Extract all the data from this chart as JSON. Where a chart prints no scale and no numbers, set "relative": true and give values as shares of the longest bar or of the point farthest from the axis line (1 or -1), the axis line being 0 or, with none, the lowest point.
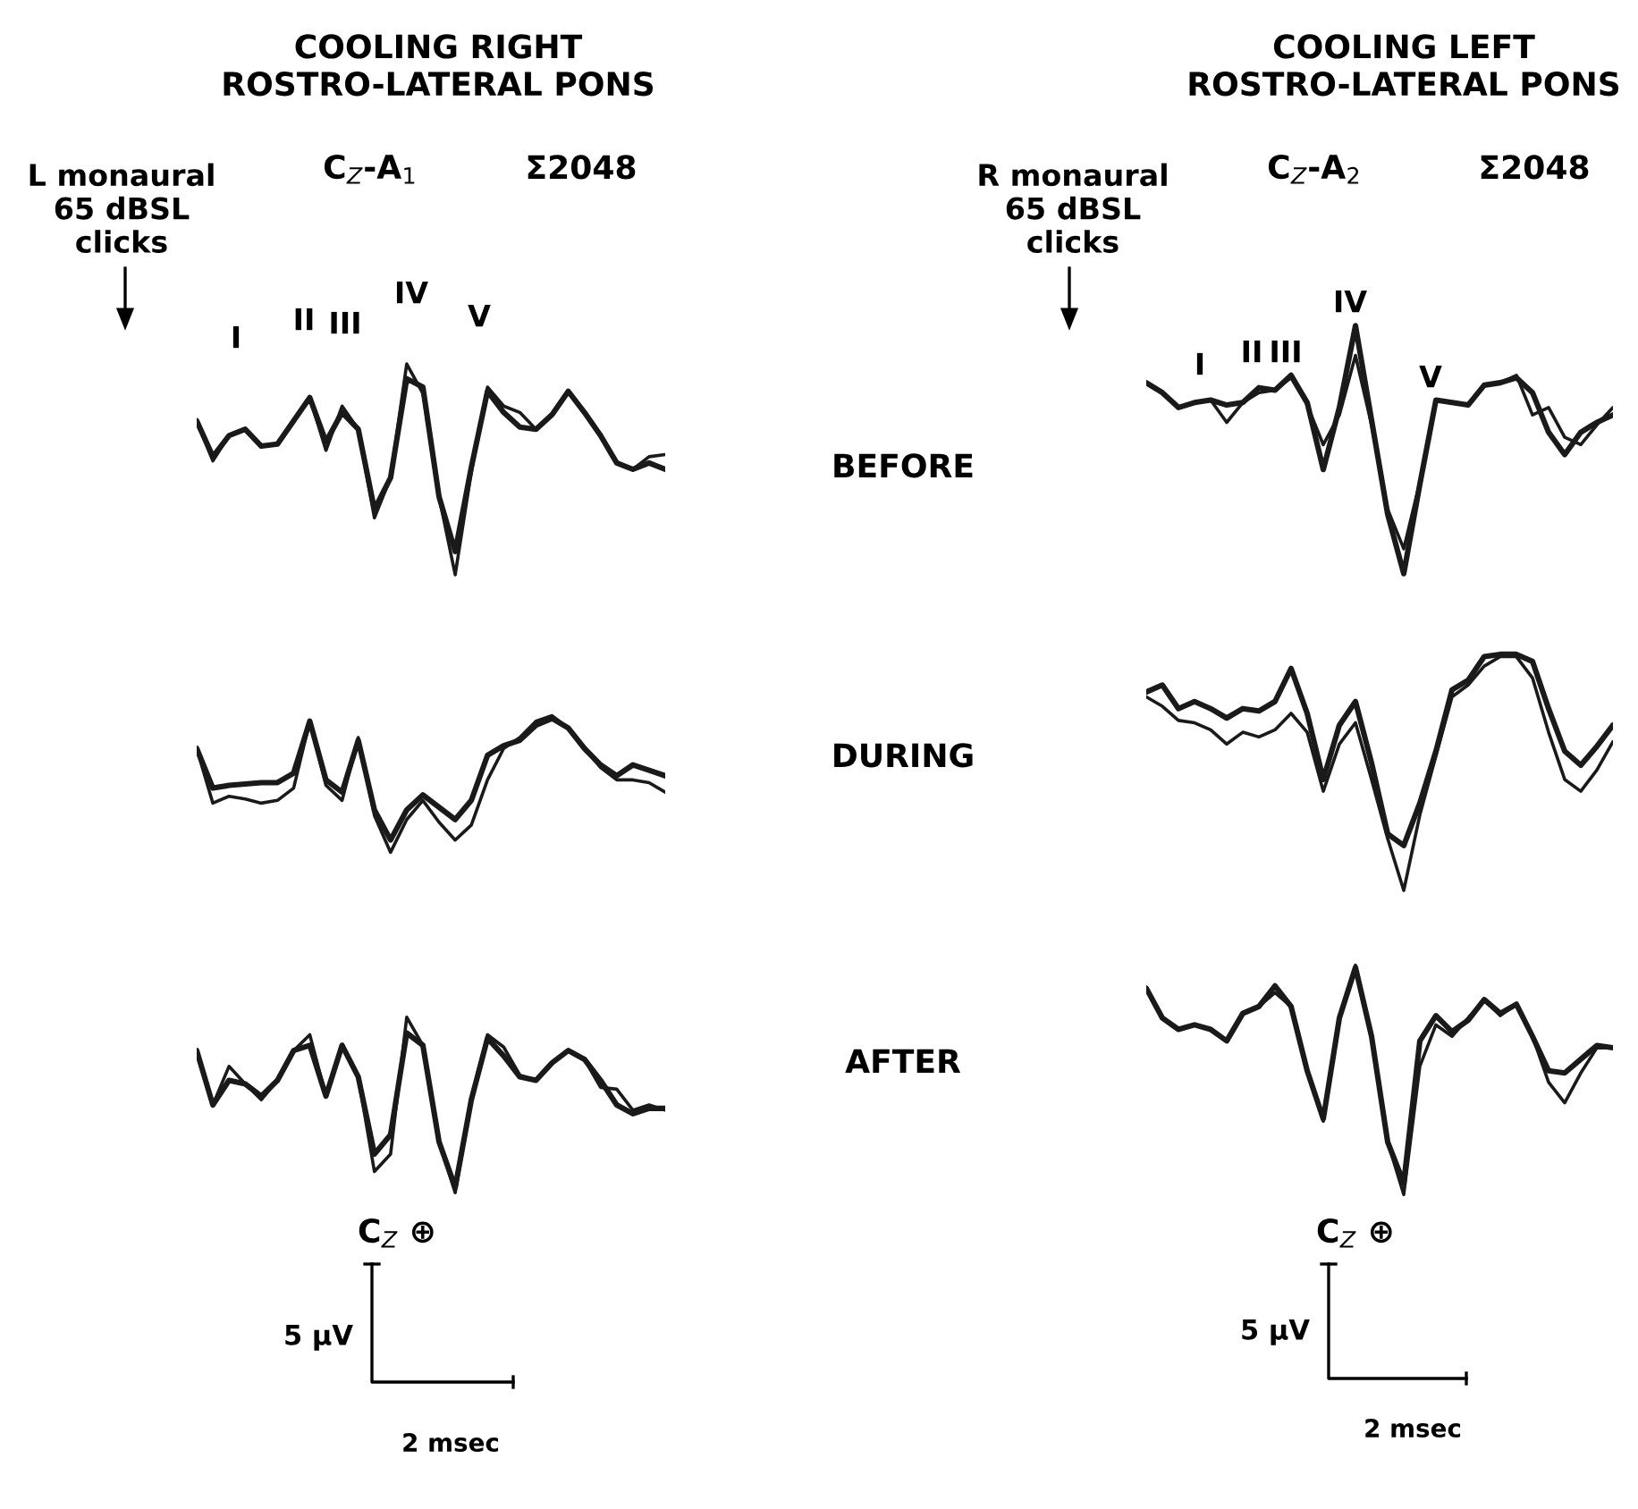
{
  "chart_data": [
    {
      "type": "line",
      "relative": true,
      "title": "COOLING RIGHT\nROSTRO-LATERAL PONS",
      "categories": [
        null,
        null,
        null,
        null,
        null,
        null,
        null,
        null,
        null,
        null,
        null,
        null,
        null,
        null,
        null,
        null,
        null,
        null,
        null,
        null,
        null,
        null,
        null,
        null,
        null,
        null,
        null,
        null,
        null,
        null
      ],
      "series": [
        {
          "color": "#1a1a1a",
          "values": [
            0.73,
            0.56,
            0.66,
            0.69,
            0.61,
            0.62,
            0.73,
            0.84,
            0.63,
            0.77,
            0.69,
            0.31,
            0.46,
            0.93,
            0.89,
            0.37,
            0.11,
            0.51,
            0.87,
            0.77,
            0.7,
            0.69,
            0.76,
            0.87,
            0.77,
            0.66,
            0.53,
            0.5,
            0.53,
            0.5
          ]
        },
        {
          "color": "#1a1a1a",
          "values": [
            0.73,
            0.54,
            0.66,
            0.69,
            0.61,
            0.62,
            0.73,
            0.84,
            0.59,
            0.8,
            0.69,
            0.27,
            0.46,
            1.0,
            0.86,
            0.37,
            0.0,
            0.49,
            0.89,
            0.8,
            0.77,
            0.69,
            0.76,
            0.87,
            0.77,
            0.66,
            0.53,
            0.5,
            0.56,
            0.57
          ]
        }
      ],
      "annotations": [
        "L monaural\n65 dBSL\nclicks",
        "C$_{Z}$-A$_{1}$",
        "Σ2048",
        "I",
        "II",
        "III",
        "IV",
        "V",
        "BEFORE"
      ]
    },
    {
      "type": "line",
      "relative": true,
      "title": "COOLING LEFT\nROSTRO-LATERAL PONS",
      "categories": [
        null,
        null,
        null,
        null,
        null,
        null,
        null,
        null,
        null,
        null,
        null,
        null,
        null,
        null,
        null,
        null,
        null,
        null,
        null,
        null,
        null,
        null,
        null,
        null,
        null,
        null,
        null,
        null,
        null,
        null
      ],
      "series": [
        {
          "color": "#1a1a1a",
          "values": [
            0.77,
            0.73,
            0.67,
            0.69,
            0.7,
            0.68,
            0.69,
            0.75,
            0.74,
            0.8,
            0.69,
            0.42,
            0.67,
            1.0,
            0.62,
            0.24,
            0.0,
            0.36,
            0.7,
            0.69,
            0.68,
            0.76,
            0.77,
            0.79,
            0.73,
            0.57,
            0.48,
            0.57,
            0.61,
            0.64
          ]
        },
        {
          "color": "#1a1a1a",
          "values": [
            0.77,
            0.73,
            0.67,
            0.69,
            0.7,
            0.61,
            0.69,
            0.73,
            0.74,
            0.79,
            0.68,
            0.52,
            0.64,
            0.88,
            0.6,
            0.26,
            0.1,
            0.37,
            0.7,
            0.69,
            0.68,
            0.76,
            0.77,
            0.8,
            0.64,
            0.67,
            0.55,
            0.52,
            0.6,
            0.67
          ]
        }
      ],
      "annotations": [
        "R monaural\n65 dBSL\nclicks",
        "C$_{Z}$-A$_{2}$",
        "Σ2048",
        "I",
        "II",
        "III",
        "IV",
        "V"
      ]
    },
    {
      "type": "line",
      "relative": true,
      "categories": [
        null,
        null,
        null,
        null,
        null,
        null,
        null,
        null,
        null,
        null,
        null,
        null,
        null,
        null,
        null,
        null,
        null,
        null,
        null,
        null,
        null,
        null,
        null,
        null,
        null,
        null,
        null,
        null,
        null,
        null
      ],
      "series": [
        {
          "color": "#1a1a1a",
          "values": [
            0.76,
            0.47,
            0.49,
            0.5,
            0.51,
            0.51,
            0.58,
            0.96,
            0.53,
            0.44,
            0.82,
            0.31,
            0.09,
            0.31,
            0.42,
            0.33,
            0.24,
            0.38,
            0.71,
            0.78,
            0.82,
            0.93,
            0.98,
            0.91,
            0.76,
            0.64,
            0.56,
            0.64,
            0.6,
            0.56
          ]
        },
        {
          "color": "#1a1a1a",
          "values": [
            0.76,
            0.36,
            0.41,
            0.39,
            0.36,
            0.38,
            0.47,
            0.96,
            0.49,
            0.38,
            0.84,
            0.27,
            0.0,
            0.24,
            0.38,
            0.22,
            0.09,
            0.2,
            0.53,
            0.76,
            0.84,
            0.96,
            1.0,
            0.91,
            0.76,
            0.62,
            0.53,
            0.53,
            0.51,
            0.44
          ]
        }
      ],
      "annotations": [
        "DURING"
      ]
    },
    {
      "type": "line",
      "relative": true,
      "categories": [
        null,
        null,
        null,
        null,
        null,
        null,
        null,
        null,
        null,
        null,
        null,
        null,
        null,
        null,
        null,
        null,
        null,
        null,
        null,
        null,
        null,
        null,
        null,
        null,
        null,
        null,
        null,
        null,
        null,
        null
      ],
      "series": [
        {
          "color": "#1a1a1a",
          "values": [
            0.84,
            0.87,
            0.77,
            0.8,
            0.77,
            0.73,
            0.77,
            0.76,
            0.8,
            0.94,
            0.75,
            0.47,
            0.7,
            0.8,
            0.54,
            0.24,
            0.19,
            0.37,
            0.59,
            0.85,
            0.89,
            0.99,
            1.0,
            1.0,
            0.97,
            0.77,
            0.59,
            0.53,
            0.61,
            0.7
          ]
        },
        {
          "color": "#1a1a1a",
          "values": [
            0.82,
            0.78,
            0.72,
            0.71,
            0.68,
            0.62,
            0.67,
            0.65,
            0.68,
            0.75,
            0.67,
            0.42,
            0.62,
            0.71,
            0.47,
            0.22,
            0.0,
            0.32,
            0.57,
            0.82,
            0.87,
            0.95,
            0.99,
            0.99,
            0.9,
            0.67,
            0.47,
            0.42,
            0.51,
            0.63
          ]
        }
      ]
    },
    {
      "type": "line",
      "relative": true,
      "categories": [
        null,
        null,
        null,
        null,
        null,
        null,
        null,
        null,
        null,
        null,
        null,
        null,
        null,
        null,
        null,
        null,
        null,
        null,
        null,
        null,
        null,
        null,
        null,
        null,
        null,
        null,
        null,
        null,
        null,
        null
      ],
      "series": [
        {
          "color": "#1a1a1a",
          "values": [
            0.81,
            0.5,
            0.64,
            0.62,
            0.55,
            0.64,
            0.81,
            0.84,
            0.55,
            0.84,
            0.66,
            0.22,
            0.33,
            0.91,
            0.84,
            0.29,
            0.03,
            0.53,
            0.88,
            0.78,
            0.66,
            0.64,
            0.74,
            0.81,
            0.76,
            0.64,
            0.5,
            0.45,
            0.48,
            0.48
          ]
        },
        {
          "color": "#1a1a1a",
          "values": [
            0.81,
            0.5,
            0.72,
            0.62,
            0.53,
            0.64,
            0.81,
            0.9,
            0.55,
            0.84,
            0.66,
            0.12,
            0.22,
            1.0,
            0.84,
            0.29,
            0.0,
            0.53,
            0.9,
            0.83,
            0.67,
            0.64,
            0.74,
            0.81,
            0.76,
            0.6,
            0.59,
            0.47,
            0.5,
            0.47
          ]
        }
      ],
      "annotations": [
        "AFTER",
        "C$_{Z}$ ⊕",
        "5 µV",
        "2 msec"
      ]
    },
    {
      "type": "line",
      "relative": true,
      "categories": [
        null,
        null,
        null,
        null,
        null,
        null,
        null,
        null,
        null,
        null,
        null,
        null,
        null,
        null,
        null,
        null,
        null,
        null,
        null,
        null,
        null,
        null,
        null,
        null,
        null,
        null,
        null,
        null,
        null,
        null
      ],
      "series": [
        {
          "color": "#1a1a1a",
          "values": [
            0.9,
            0.77,
            0.72,
            0.74,
            0.72,
            0.67,
            0.79,
            0.82,
            0.91,
            0.82,
            0.54,
            0.33,
            0.77,
            0.99,
            0.69,
            0.23,
            0.05,
            0.67,
            0.78,
            0.71,
            0.76,
            0.85,
            0.79,
            0.83,
            0.69,
            0.54,
            0.53,
            0.59,
            0.65,
            0.64
          ]
        },
        {
          "color": "#1a1a1a",
          "values": [
            0.9,
            0.77,
            0.72,
            0.74,
            0.72,
            0.67,
            0.79,
            0.82,
            0.88,
            0.82,
            0.54,
            0.32,
            0.77,
            1.0,
            0.69,
            0.23,
            0.0,
            0.56,
            0.74,
            0.69,
            0.77,
            0.85,
            0.78,
            0.83,
            0.69,
            0.49,
            0.4,
            0.53,
            0.64,
            0.64
          ]
        }
      ],
      "annotations": [
        "C$_{Z}$ ⊕",
        "5 µV",
        "2 msec"
      ]
    }
  ]
}
